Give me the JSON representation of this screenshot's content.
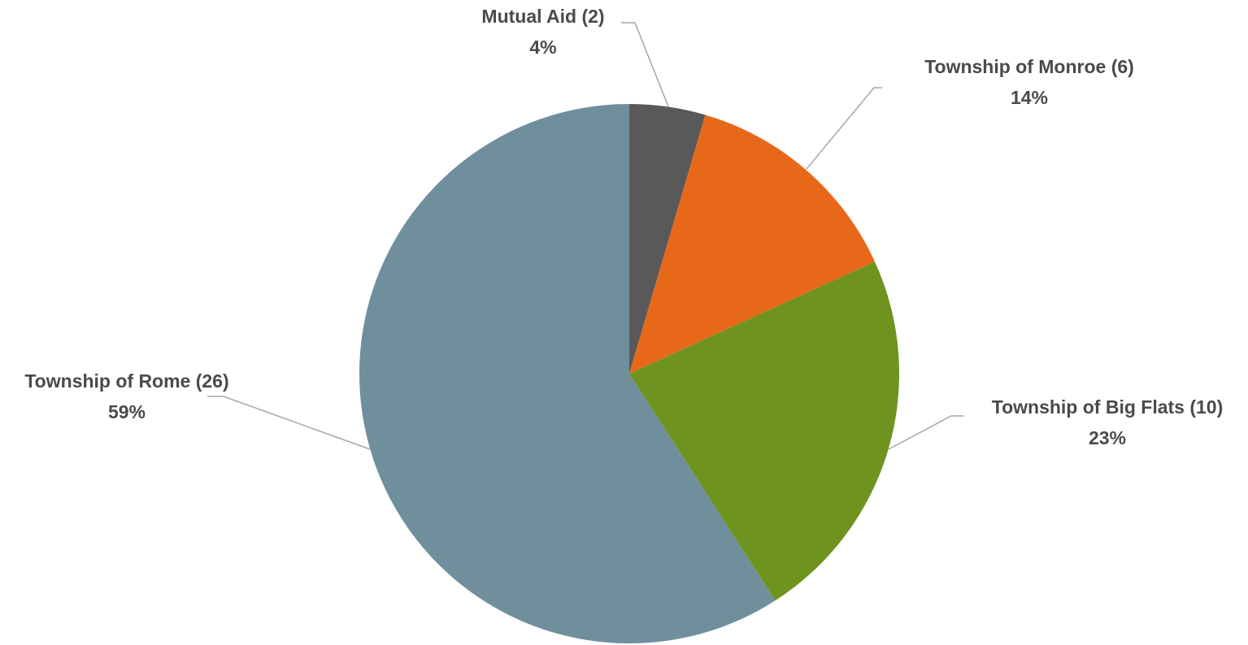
{
  "chart_data": {
    "type": "pie",
    "title": "",
    "slices": [
      {
        "label": "Mutual Aid (2)",
        "value": 2,
        "percent_label": "4%",
        "color": "#595959"
      },
      {
        "label": "Township of Monroe (6)",
        "value": 6,
        "percent_label": "14%",
        "color": "#e8681a"
      },
      {
        "label": "Township of Big Flats (10)",
        "value": 10,
        "percent_label": "23%",
        "color": "#6e941f"
      },
      {
        "label": "Township of Rome (26)",
        "value": 26,
        "percent_label": "59%",
        "color": "#6f8f9d"
      }
    ],
    "start_angle_deg": 0,
    "direction": "clockwise",
    "data_labels": "outside with leader lines",
    "legend": "none"
  }
}
